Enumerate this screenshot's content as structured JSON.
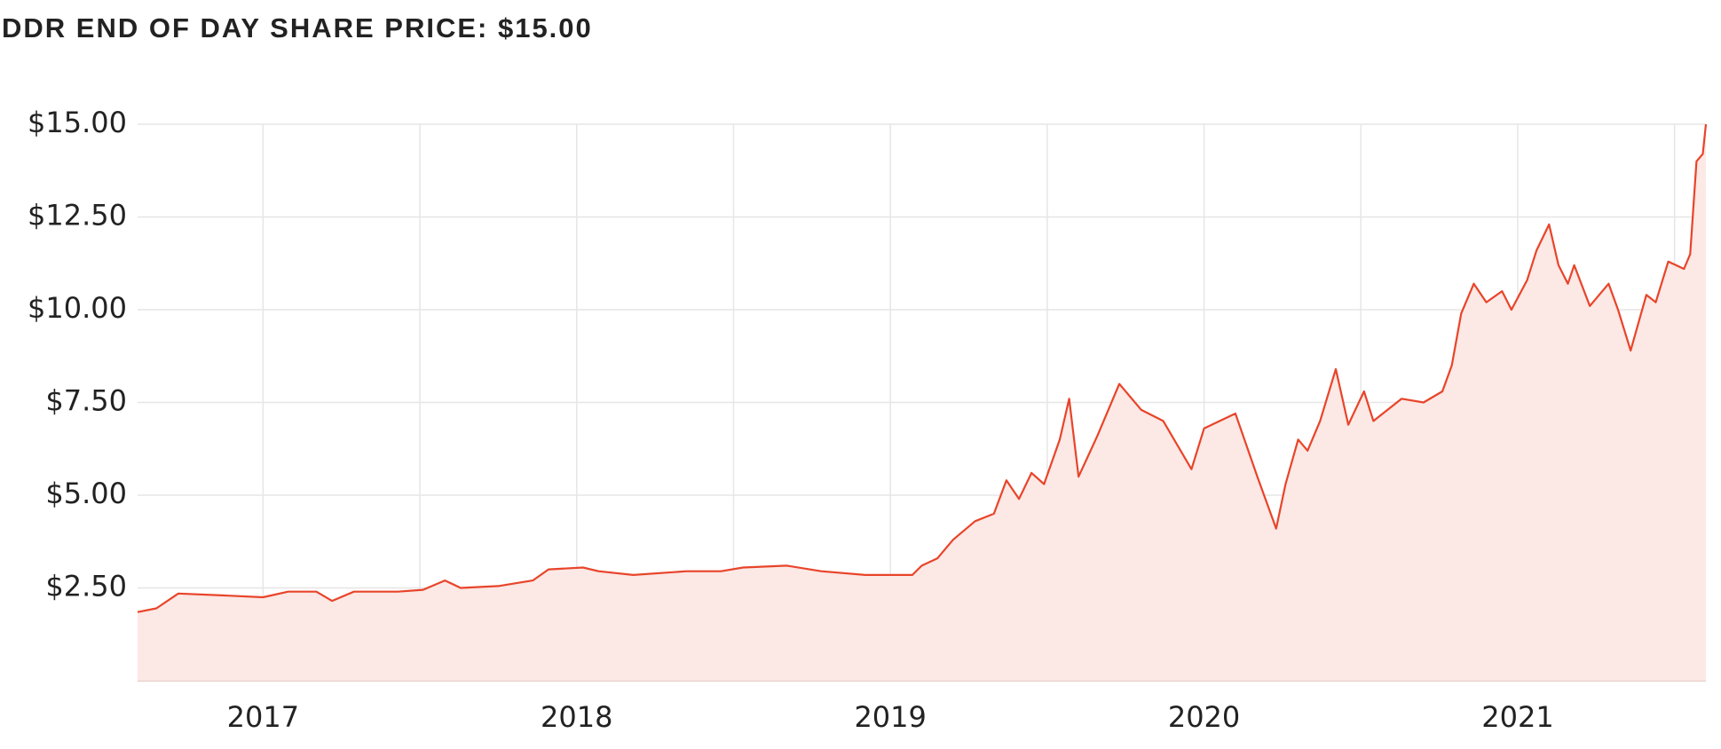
{
  "chart_data": {
    "type": "area-line",
    "title": "DDR END OF DAY SHARE PRICE: $15.00",
    "x": [
      2016.6,
      2016.66,
      2016.73,
      2016.87,
      2017.0,
      2017.08,
      2017.17,
      2017.22,
      2017.29,
      2017.43,
      2017.51,
      2017.58,
      2017.63,
      2017.75,
      2017.86,
      2017.91,
      2018.02,
      2018.07,
      2018.18,
      2018.35,
      2018.46,
      2018.53,
      2018.67,
      2018.78,
      2018.92,
      2019.07,
      2019.1,
      2019.15,
      2019.2,
      2019.27,
      2019.33,
      2019.37,
      2019.41,
      2019.45,
      2019.49,
      2019.54,
      2019.57,
      2019.6,
      2019.66,
      2019.73,
      2019.8,
      2019.87,
      2019.96,
      2020.0,
      2020.05,
      2020.1,
      2020.17,
      2020.23,
      2020.26,
      2020.3,
      2020.33,
      2020.37,
      2020.42,
      2020.46,
      2020.51,
      2020.54,
      2020.63,
      2020.7,
      2020.76,
      2020.79,
      2020.82,
      2020.86,
      2020.9,
      2020.95,
      2020.98,
      2021.03,
      2021.06,
      2021.1,
      2021.13,
      2021.16,
      2021.18,
      2021.23,
      2021.29,
      2021.32,
      2021.36,
      2021.41,
      2021.44,
      2021.48,
      2021.53,
      2021.55,
      2021.57,
      2021.59,
      2021.6
    ],
    "series": [
      {
        "name": "DDR",
        "color": "#e8442a",
        "fill": "#fce8e4",
        "values": [
          1.85,
          1.95,
          2.35,
          2.3,
          2.25,
          2.4,
          2.4,
          2.15,
          2.4,
          2.4,
          2.45,
          2.7,
          2.5,
          2.55,
          2.7,
          3.0,
          3.05,
          2.95,
          2.85,
          2.95,
          2.95,
          3.05,
          3.1,
          2.95,
          2.85,
          2.85,
          3.1,
          3.3,
          3.8,
          4.3,
          4.5,
          5.4,
          4.9,
          5.6,
          5.3,
          6.5,
          7.6,
          5.5,
          6.6,
          8.0,
          7.3,
          7.0,
          5.7,
          6.8,
          7.0,
          7.2,
          5.5,
          4.1,
          5.3,
          6.5,
          6.2,
          7.0,
          8.4,
          6.9,
          7.8,
          7.0,
          7.6,
          7.5,
          7.8,
          8.5,
          9.9,
          10.7,
          10.2,
          10.5,
          10.0,
          10.8,
          11.6,
          12.3,
          11.2,
          10.7,
          11.2,
          10.1,
          10.7,
          10.0,
          8.9,
          10.4,
          10.2,
          11.3,
          11.1,
          11.5,
          14.0,
          14.2,
          15.0
        ]
      }
    ],
    "xlim": [
      2016.6,
      2021.6
    ],
    "xticks": [
      2017,
      2018,
      2019,
      2020,
      2021
    ],
    "x_minor_grid": [
      2017.5,
      2018.5,
      2019.5,
      2020.5,
      2021.5
    ],
    "ylim": [
      0,
      15
    ],
    "yticks": [
      {
        "value": 2.5,
        "label": "$2.50"
      },
      {
        "value": 5,
        "label": "$5.00"
      },
      {
        "value": 7.5,
        "label": "$7.50"
      },
      {
        "value": 10,
        "label": "$10.00"
      },
      {
        "value": 12.5,
        "label": "$12.50"
      },
      {
        "value": 15,
        "label": "$15.00"
      }
    ],
    "grid": true
  }
}
